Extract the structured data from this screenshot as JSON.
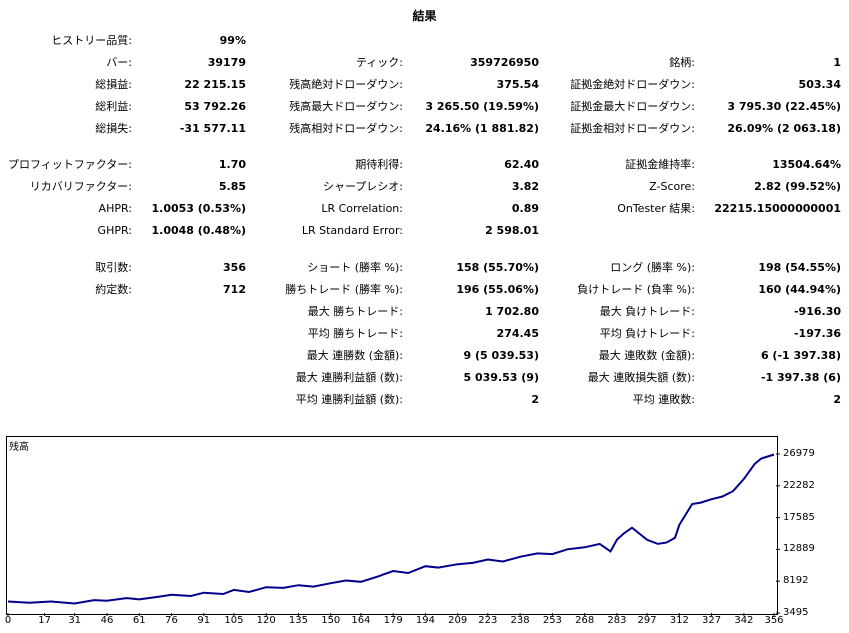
{
  "title": "結果",
  "rows": [
    {
      "cells": [
        {
          "label": "ヒストリー品質:",
          "value": "99%"
        },
        {
          "label": "",
          "value": ""
        },
        {
          "label": "",
          "value": ""
        }
      ]
    },
    {
      "cells": [
        {
          "label": "バー:",
          "value": "39179"
        },
        {
          "label": "ティック:",
          "value": "359726950"
        },
        {
          "label": "銘柄:",
          "value": "1"
        }
      ]
    },
    {
      "cells": [
        {
          "label": "総損益:",
          "value": "22 215.15"
        },
        {
          "label": "残高絶対ドローダウン:",
          "value": "375.54"
        },
        {
          "label": "証拠金絶対ドローダウン:",
          "value": "503.34"
        }
      ]
    },
    {
      "cells": [
        {
          "label": "総利益:",
          "value": "53 792.26"
        },
        {
          "label": "残高最大ドローダウン:",
          "value": "3 265.50 (19.59%)"
        },
        {
          "label": "証拠金最大ドローダウン:",
          "value": "3 795.30 (22.45%)"
        }
      ]
    },
    {
      "cells": [
        {
          "label": "総損失:",
          "value": "-31 577.11"
        },
        {
          "label": "残高相対ドローダウン:",
          "value": "24.16% (1 881.82)"
        },
        {
          "label": "証拠金相対ドローダウン:",
          "value": "26.09% (2 063.18)"
        }
      ]
    },
    {
      "cells": [
        {
          "label": "プロフィットファクター:",
          "value": "1.70"
        },
        {
          "label": "期待利得:",
          "value": "62.40"
        },
        {
          "label": "証拠金維持率:",
          "value": "13504.64%"
        }
      ]
    },
    {
      "cells": [
        {
          "label": "リカバリファクター:",
          "value": "5.85"
        },
        {
          "label": "シャープレシオ:",
          "value": "3.82"
        },
        {
          "label": "Z-Score:",
          "value": "2.82 (99.52%)"
        }
      ]
    },
    {
      "cells": [
        {
          "label": "AHPR:",
          "value": "1.0053 (0.53%)"
        },
        {
          "label": "LR Correlation:",
          "value": "0.89"
        },
        {
          "label": "OnTester 結果:",
          "value": "22215.15000000001"
        }
      ]
    },
    {
      "cells": [
        {
          "label": "GHPR:",
          "value": "1.0048 (0.48%)"
        },
        {
          "label": "LR Standard Error:",
          "value": "2 598.01"
        },
        {
          "label": "",
          "value": ""
        }
      ]
    },
    {
      "cells": [
        {
          "label": "取引数:",
          "value": "356"
        },
        {
          "label": "ショート (勝率 %):",
          "value": "158 (55.70%)"
        },
        {
          "label": "ロング (勝率 %):",
          "value": "198 (54.55%)"
        }
      ]
    },
    {
      "cells": [
        {
          "label": "約定数:",
          "value": "712"
        },
        {
          "label": "勝ちトレード (勝率 %):",
          "value": "196 (55.06%)"
        },
        {
          "label": "負けトレード (負率 %):",
          "value": "160 (44.94%)"
        }
      ]
    },
    {
      "cells": [
        {
          "label": "",
          "value": ""
        },
        {
          "label": "最大 勝ちトレード:",
          "value": "1 702.80"
        },
        {
          "label": "最大 負けトレード:",
          "value": "-916.30"
        }
      ]
    },
    {
      "cells": [
        {
          "label": "",
          "value": ""
        },
        {
          "label": "平均 勝ちトレード:",
          "value": "274.45"
        },
        {
          "label": "平均 負けトレード:",
          "value": "-197.36"
        }
      ]
    },
    {
      "cells": [
        {
          "label": "",
          "value": ""
        },
        {
          "label": "最大 連勝数 (金額):",
          "value": "9 (5 039.53)"
        },
        {
          "label": "最大 連敗数 (金額):",
          "value": "6 (-1 397.38)"
        }
      ]
    },
    {
      "cells": [
        {
          "label": "",
          "value": ""
        },
        {
          "label": "最大 連勝利益額 (数):",
          "value": "5 039.53 (9)"
        },
        {
          "label": "最大 連敗損失額 (数):",
          "value": "-1 397.38 (6)"
        }
      ]
    },
    {
      "cells": [
        {
          "label": "",
          "value": ""
        },
        {
          "label": "平均 連勝利益額 (数):",
          "value": "2"
        },
        {
          "label": "平均 連敗数:",
          "value": "2"
        }
      ]
    }
  ],
  "chart_data": {
    "type": "line",
    "title": "残高",
    "line_color": "#00008b",
    "y_ticks": [
      "26979",
      "22282",
      "17585",
      "12889",
      "8192",
      "3495"
    ],
    "x_ticks": [
      "0",
      "17",
      "31",
      "46",
      "61",
      "76",
      "91",
      "105",
      "120",
      "135",
      "150",
      "164",
      "179",
      "194",
      "209",
      "223",
      "238",
      "253",
      "268",
      "283",
      "297",
      "312",
      "327",
      "342",
      "356"
    ],
    "ylim": [
      3495,
      26979
    ],
    "xlim": [
      0,
      356
    ],
    "series": [
      {
        "x": [
          0,
          10,
          20,
          31,
          40,
          46,
          55,
          61,
          70,
          76,
          85,
          91,
          100,
          105,
          112,
          120,
          128,
          135,
          142,
          150,
          157,
          164,
          172,
          179,
          186,
          194,
          200,
          209,
          216,
          223,
          230,
          238,
          246,
          253,
          260,
          268,
          275,
          280,
          283,
          286,
          290,
          297,
          302,
          306,
          310,
          312,
          318,
          322,
          327,
          332,
          337,
          342,
          347,
          350,
          356
        ],
        "y": [
          5200,
          5000,
          5200,
          4900,
          5400,
          5300,
          5700,
          5500,
          5900,
          6200,
          6000,
          6500,
          6300,
          6900,
          6600,
          7300,
          7200,
          7600,
          7400,
          7900,
          8300,
          8100,
          8900,
          9700,
          9400,
          10400,
          10200,
          10700,
          10900,
          11400,
          11100,
          11800,
          12300,
          12200,
          12900,
          13200,
          13700,
          12600,
          14300,
          15200,
          16100,
          14300,
          13700,
          13900,
          14600,
          16500,
          19600,
          19800,
          20300,
          20700,
          21500,
          23300,
          25500,
          26300,
          26900
        ]
      }
    ]
  }
}
